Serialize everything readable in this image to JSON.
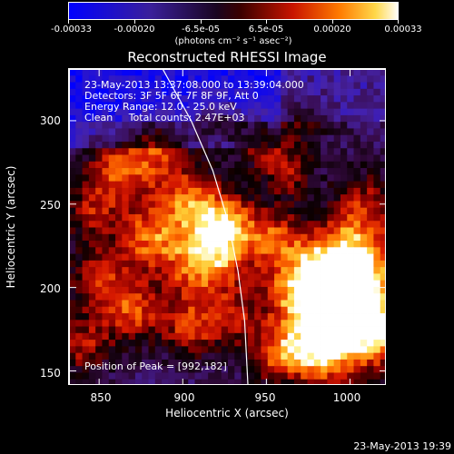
{
  "colorbar": {
    "ticks": [
      "-0.00033",
      "-0.00020",
      "-6.5e-05",
      "6.5e-05",
      "0.00020",
      "0.00033"
    ],
    "units": "(photons cm⁻² s⁻¹ asec⁻²)"
  },
  "title": "Reconstructed RHESSI Image",
  "overlay": {
    "time": "23-May-2013 13:37:08.000 to 13:39:04.000",
    "detectors": "Detectors: 3F 5F 6F 7F 8F 9F, Att 0",
    "energy": "Energy Range: 12.0 - 25.0 keV",
    "clean": "Clean     Total counts: 2.47E+03",
    "peak": "Position of Peak = [992,182]"
  },
  "footer": "23-May-2013 19:39",
  "chart_data": {
    "type": "heatmap",
    "title": "Reconstructed RHESSI Image",
    "xlabel": "Heliocentric X (arcsec)",
    "ylabel": "Heliocentric Y (arcsec)",
    "xlim": [
      832,
      1022
    ],
    "ylim": [
      141,
      331
    ],
    "xticks": [
      "850",
      "900",
      "950",
      "1000"
    ],
    "yticks": [
      "150",
      "200",
      "250",
      "300"
    ],
    "colorbar_range": [
      -0.00033,
      0.00033
    ],
    "colormap": "blue-purple-red-yellow-white",
    "peak_position": [
      992,
      182
    ],
    "limb_curve": [
      [
        888,
        331
      ],
      [
        905,
        300
      ],
      [
        918,
        270
      ],
      [
        927,
        240
      ],
      [
        933,
        210
      ],
      [
        937,
        180
      ],
      [
        939,
        141
      ]
    ]
  },
  "colors": {
    "background": "#000000",
    "axis": "#ffffff",
    "limb": "#ffffff"
  }
}
